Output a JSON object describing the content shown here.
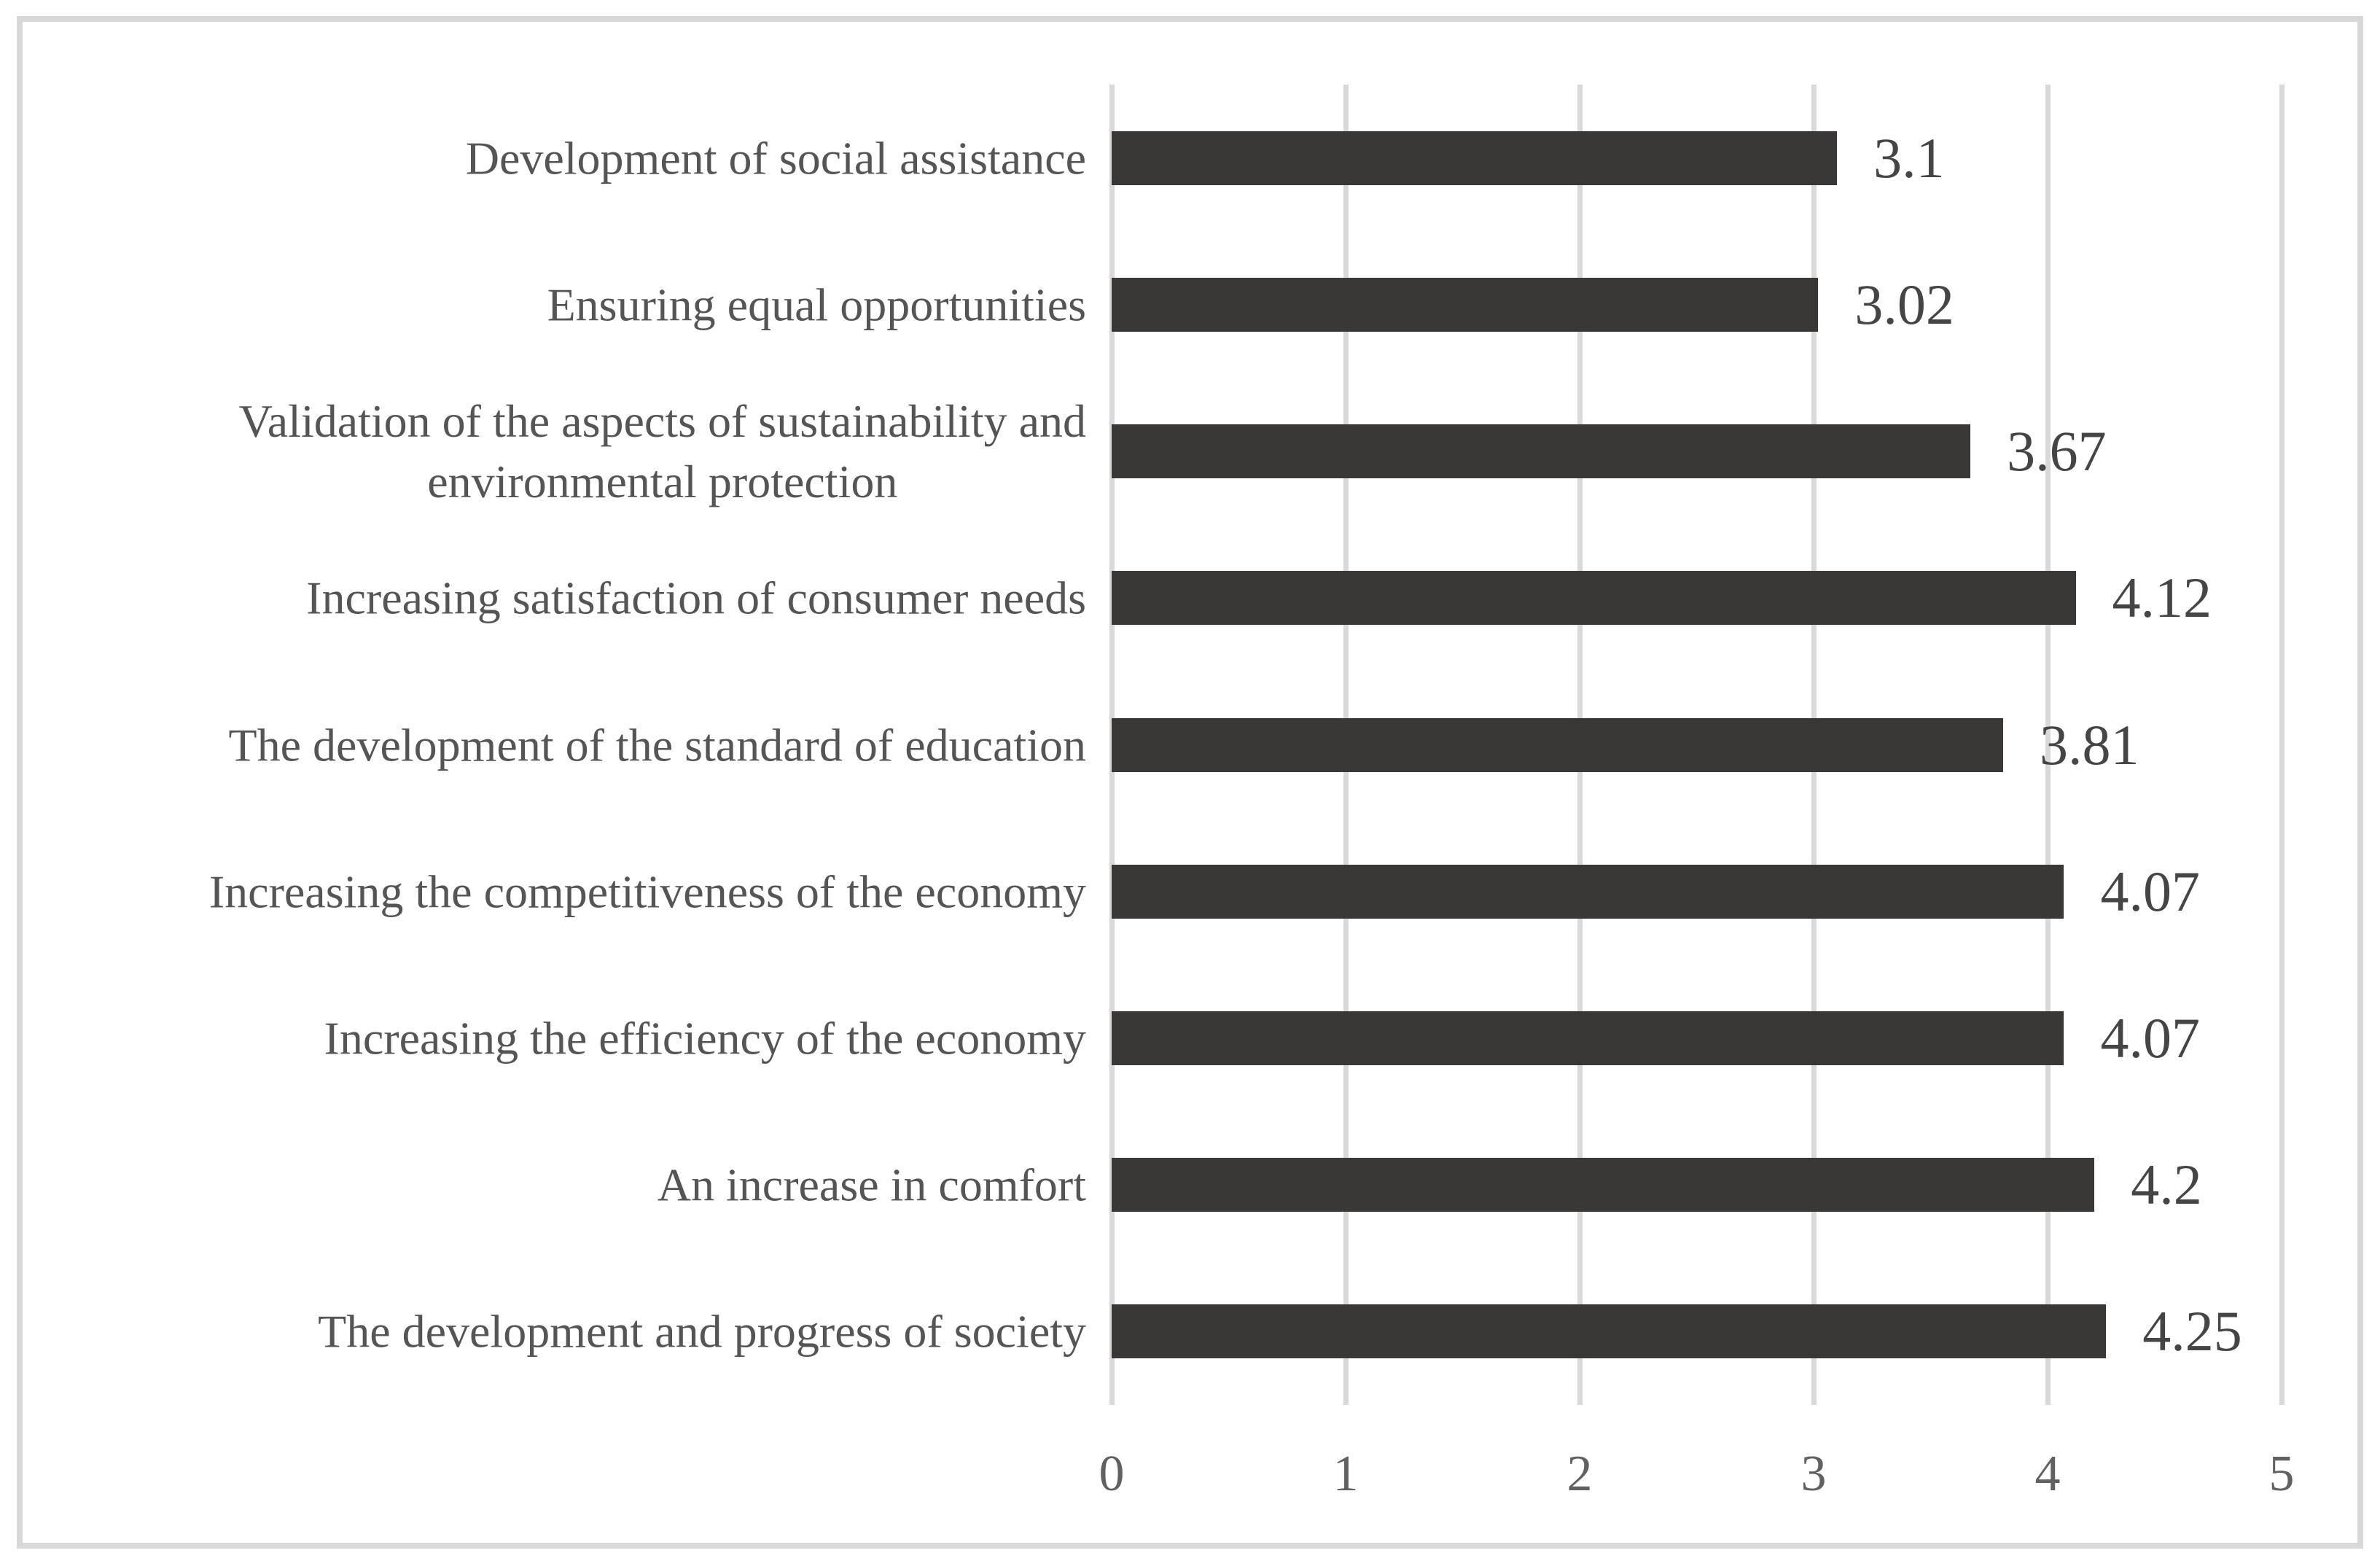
{
  "chart_data": {
    "type": "bar",
    "orientation": "horizontal",
    "title": "",
    "xlabel": "",
    "ylabel": "",
    "categories": [
      "Development of social assistance",
      "Ensuring equal opportunities",
      "Validation of the aspects of sustainability and\nenvironmental protection",
      "Increasing satisfaction of consumer needs",
      "The development of the standard of education",
      "Increasing the competitiveness of the economy",
      "Increasing the efficiency of the economy",
      "An increase in comfort",
      "The development and progress of society"
    ],
    "values": [
      3.1,
      3.02,
      3.67,
      4.12,
      3.81,
      4.07,
      4.07,
      4.2,
      4.25
    ],
    "value_labels": [
      "3.1",
      "3.02",
      "3.67",
      "4.12",
      "3.81",
      "4.07",
      "4.07",
      "4.2",
      "4.25"
    ],
    "xlim": [
      0,
      5
    ],
    "x_ticks": [
      "0",
      "1",
      "2",
      "3",
      "4",
      "5"
    ],
    "grid": true,
    "legend": false,
    "colors": {
      "bar": "#3a3836",
      "gridline": "#d9d9d9",
      "category_text": "#555555",
      "value_text": "#454545",
      "tick_text": "#616161",
      "frame_border": "#d8d8d8",
      "background": "#ffffff"
    }
  }
}
